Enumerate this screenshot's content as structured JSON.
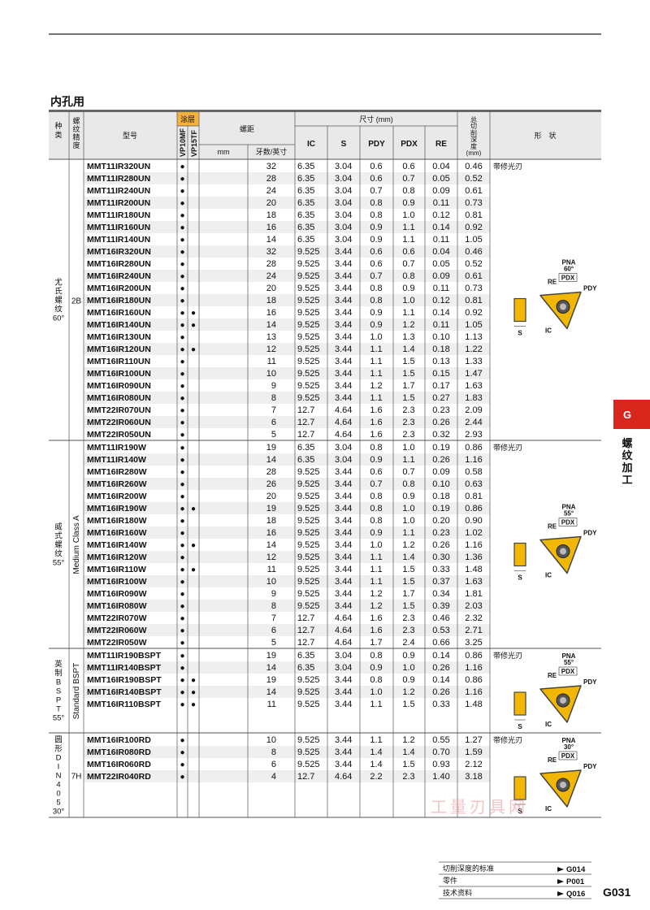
{
  "header": {
    "section_title": "内孔用"
  },
  "table": {
    "headers": {
      "kind": [
        "种",
        "类"
      ],
      "accuracy": [
        "螺",
        "纹",
        "精",
        "度"
      ],
      "model": "型号",
      "coating": "涂层",
      "grades": [
        "VP10MF",
        "VP15TF"
      ],
      "pitch": "螺距",
      "pitch_mm": "mm",
      "pitch_tpi": "牙数/英寸",
      "dimensions": "尺寸 (mm)",
      "dims": [
        "IC",
        "S",
        "PDY",
        "PDX",
        "RE"
      ],
      "depth": [
        "总",
        "切",
        "削",
        "深",
        "度",
        "(mm)"
      ],
      "shape": "形　状"
    },
    "groups": [
      {
        "kind": [
          "尤",
          "氏",
          "螺",
          "纹",
          "60°"
        ],
        "accuracy": "2B",
        "shape": {
          "note": "带修光刃",
          "pna": "PNA",
          "angle": "60°"
        },
        "rows": [
          [
            "MMT11IR320UN",
            "●",
            null,
            "32",
            "6.35",
            "3.04",
            "0.6",
            "0.6",
            "0.04",
            "0.46"
          ],
          [
            "MMT11IR280UN",
            "●",
            null,
            "28",
            "6.35",
            "3.04",
            "0.6",
            "0.7",
            "0.05",
            "0.52"
          ],
          [
            "MMT11IR240UN",
            "●",
            null,
            "24",
            "6.35",
            "3.04",
            "0.7",
            "0.8",
            "0.09",
            "0.61"
          ],
          [
            "MMT11IR200UN",
            "●",
            null,
            "20",
            "6.35",
            "3.04",
            "0.8",
            "0.9",
            "0.11",
            "0.73"
          ],
          [
            "MMT11IR180UN",
            "●",
            null,
            "18",
            "6.35",
            "3.04",
            "0.8",
            "1.0",
            "0.12",
            "0.81"
          ],
          [
            "MMT11IR160UN",
            "●",
            null,
            "16",
            "6.35",
            "3.04",
            "0.9",
            "1.1",
            "0.14",
            "0.92"
          ],
          [
            "MMT11IR140UN",
            "●",
            null,
            "14",
            "6.35",
            "3.04",
            "0.9",
            "1.1",
            "0.11",
            "1.05"
          ],
          [
            "MMT16IR320UN",
            "●",
            null,
            "32",
            "9.525",
            "3.44",
            "0.6",
            "0.6",
            "0.04",
            "0.46"
          ],
          [
            "MMT16IR280UN",
            "●",
            null,
            "28",
            "9.525",
            "3.44",
            "0.6",
            "0.7",
            "0.05",
            "0.52"
          ],
          [
            "MMT16IR240UN",
            "●",
            null,
            "24",
            "9.525",
            "3.44",
            "0.7",
            "0.8",
            "0.09",
            "0.61"
          ],
          [
            "MMT16IR200UN",
            "●",
            null,
            "20",
            "9.525",
            "3.44",
            "0.8",
            "0.9",
            "0.11",
            "0.73"
          ],
          [
            "MMT16IR180UN",
            "●",
            null,
            "18",
            "9.525",
            "3.44",
            "0.8",
            "1.0",
            "0.12",
            "0.81"
          ],
          [
            "MMT16IR160UN",
            "●",
            "●",
            "16",
            "9.525",
            "3.44",
            "0.9",
            "1.1",
            "0.14",
            "0.92"
          ],
          [
            "MMT16IR140UN",
            "●",
            "●",
            "14",
            "9.525",
            "3.44",
            "0.9",
            "1.2",
            "0.11",
            "1.05"
          ],
          [
            "MMT16IR130UN",
            "●",
            null,
            "13",
            "9.525",
            "3.44",
            "1.0",
            "1.3",
            "0.10",
            "1.13"
          ],
          [
            "MMT16IR120UN",
            "●",
            "●",
            "12",
            "9.525",
            "3.44",
            "1.1",
            "1.4",
            "0.18",
            "1.22"
          ],
          [
            "MMT16IR110UN",
            "●",
            null,
            "11",
            "9.525",
            "3.44",
            "1.1",
            "1.5",
            "0.13",
            "1.33"
          ],
          [
            "MMT16IR100UN",
            "●",
            null,
            "10",
            "9.525",
            "3.44",
            "1.1",
            "1.5",
            "0.15",
            "1.47"
          ],
          [
            "MMT16IR090UN",
            "●",
            null,
            "9",
            "9.525",
            "3.44",
            "1.2",
            "1.7",
            "0.17",
            "1.63"
          ],
          [
            "MMT16IR080UN",
            "●",
            null,
            "8",
            "9.525",
            "3.44",
            "1.1",
            "1.5",
            "0.27",
            "1.83"
          ],
          [
            "MMT22IR070UN",
            "●",
            null,
            "7",
            "12.7",
            "4.64",
            "1.6",
            "2.3",
            "0.23",
            "2.09"
          ],
          [
            "MMT22IR060UN",
            "●",
            null,
            "6",
            "12.7",
            "4.64",
            "1.6",
            "2.3",
            "0.26",
            "2.44"
          ],
          [
            "MMT22IR050UN",
            "●",
            null,
            "5",
            "12.7",
            "4.64",
            "1.6",
            "2.3",
            "0.32",
            "2.93"
          ]
        ]
      },
      {
        "kind": [
          "威",
          "式",
          "螺",
          "纹",
          "55°"
        ],
        "accuracy": "Medium Class A",
        "shape": {
          "note": "带修光刃",
          "pna": "PNA",
          "angle": "55°"
        },
        "rows": [
          [
            "MMT11IR190W",
            "●",
            null,
            "19",
            "6.35",
            "3.04",
            "0.8",
            "1.0",
            "0.19",
            "0.86"
          ],
          [
            "MMT11IR140W",
            "●",
            null,
            "14",
            "6.35",
            "3.04",
            "0.9",
            "1.1",
            "0.26",
            "1.16"
          ],
          [
            "MMT16IR280W",
            "●",
            null,
            "28",
            "9.525",
            "3.44",
            "0.6",
            "0.7",
            "0.09",
            "0.58"
          ],
          [
            "MMT16IR260W",
            "●",
            null,
            "26",
            "9.525",
            "3.44",
            "0.7",
            "0.8",
            "0.10",
            "0.63"
          ],
          [
            "MMT16IR200W",
            "●",
            null,
            "20",
            "9.525",
            "3.44",
            "0.8",
            "0.9",
            "0.18",
            "0.81"
          ],
          [
            "MMT16IR190W",
            "●",
            "●",
            "19",
            "9.525",
            "3.44",
            "0.8",
            "1.0",
            "0.19",
            "0.86"
          ],
          [
            "MMT16IR180W",
            "●",
            null,
            "18",
            "9.525",
            "3.44",
            "0.8",
            "1.0",
            "0.20",
            "0.90"
          ],
          [
            "MMT16IR160W",
            "●",
            null,
            "16",
            "9.525",
            "3.44",
            "0.9",
            "1.1",
            "0.23",
            "1.02"
          ],
          [
            "MMT16IR140W",
            "●",
            "●",
            "14",
            "9.525",
            "3.44",
            "1.0",
            "1.2",
            "0.26",
            "1.16"
          ],
          [
            "MMT16IR120W",
            "●",
            null,
            "12",
            "9.525",
            "3.44",
            "1.1",
            "1.4",
            "0.30",
            "1.36"
          ],
          [
            "MMT16IR110W",
            "●",
            "●",
            "11",
            "9.525",
            "3.44",
            "1.1",
            "1.5",
            "0.33",
            "1.48"
          ],
          [
            "MMT16IR100W",
            "●",
            null,
            "10",
            "9.525",
            "3.44",
            "1.1",
            "1.5",
            "0.37",
            "1.63"
          ],
          [
            "MMT16IR090W",
            "●",
            null,
            "9",
            "9.525",
            "3.44",
            "1.2",
            "1.7",
            "0.34",
            "1.81"
          ],
          [
            "MMT16IR080W",
            "●",
            null,
            "8",
            "9.525",
            "3.44",
            "1.2",
            "1.5",
            "0.39",
            "2.03"
          ],
          [
            "MMT22IR070W",
            "●",
            null,
            "7",
            "12.7",
            "4.64",
            "1.6",
            "2.3",
            "0.46",
            "2.32"
          ],
          [
            "MMT22IR060W",
            "●",
            null,
            "6",
            "12.7",
            "4.64",
            "1.6",
            "2.3",
            "0.53",
            "2.71"
          ],
          [
            "MMT22IR050W",
            "●",
            null,
            "5",
            "12.7",
            "4.64",
            "1.7",
            "2.4",
            "0.66",
            "3.25"
          ]
        ]
      },
      {
        "kind": [
          "英",
          "制",
          "B",
          "S",
          "P",
          "T",
          "55°"
        ],
        "accuracy": "Standard BSPT",
        "shape": {
          "note": "带修光刃",
          "pna": "PNA",
          "angle": "55°"
        },
        "rows": [
          [
            "MMT11IR190BSPT",
            "●",
            null,
            "19",
            "6.35",
            "3.04",
            "0.8",
            "0.9",
            "0.14",
            "0.86"
          ],
          [
            "MMT11IR140BSPT",
            "●",
            null,
            "14",
            "6.35",
            "3.04",
            "0.9",
            "1.0",
            "0.26",
            "1.16"
          ],
          [
            "MMT16IR190BSPT",
            "●",
            "●",
            "19",
            "9.525",
            "3.44",
            "0.8",
            "0.9",
            "0.14",
            "0.86"
          ],
          [
            "MMT16IR140BSPT",
            "●",
            "●",
            "14",
            "9.525",
            "3.44",
            "1.0",
            "1.2",
            "0.26",
            "1.16"
          ],
          [
            "MMT16IR110BSPT",
            "●",
            "●",
            "11",
            "9.525",
            "3.44",
            "1.1",
            "1.5",
            "0.33",
            "1.48"
          ]
        ]
      },
      {
        "kind": [
          "圆",
          "形",
          "D",
          "I",
          "N",
          "4",
          "0",
          "5",
          "30°"
        ],
        "accuracy": "7H",
        "shape": {
          "note": "带修光刃",
          "pna": "PNA",
          "angle": "30°"
        },
        "rows": [
          [
            "MMT16IR100RD",
            "●",
            null,
            "10",
            "9.525",
            "3.44",
            "1.1",
            "1.2",
            "0.55",
            "1.27"
          ],
          [
            "MMT16IR080RD",
            "●",
            null,
            "8",
            "9.525",
            "3.44",
            "1.4",
            "1.4",
            "0.70",
            "1.59"
          ],
          [
            "MMT16IR060RD",
            "●",
            null,
            "6",
            "9.525",
            "3.44",
            "1.4",
            "1.5",
            "0.93",
            "2.12"
          ],
          [
            "MMT22IR040RD",
            "●",
            null,
            "4",
            "12.7",
            "4.64",
            "2.2",
            "2.3",
            "1.40",
            "3.18"
          ]
        ]
      }
    ]
  },
  "diagram_labels": {
    "pdx": "PDX",
    "pdy": "PDY",
    "re": "RE",
    "s": "S",
    "ic": "IC"
  },
  "side_tab": {
    "letter": "G",
    "label": [
      "螺",
      "纹",
      "加",
      "工"
    ]
  },
  "footer": {
    "refs": [
      {
        "label": "切削深度的标准",
        "page": "G014"
      },
      {
        "label": "零件",
        "page": "P001"
      },
      {
        "label": "技术资料",
        "page": "Q016"
      }
    ],
    "page_number": "G031"
  },
  "watermark": "工量刃具网"
}
